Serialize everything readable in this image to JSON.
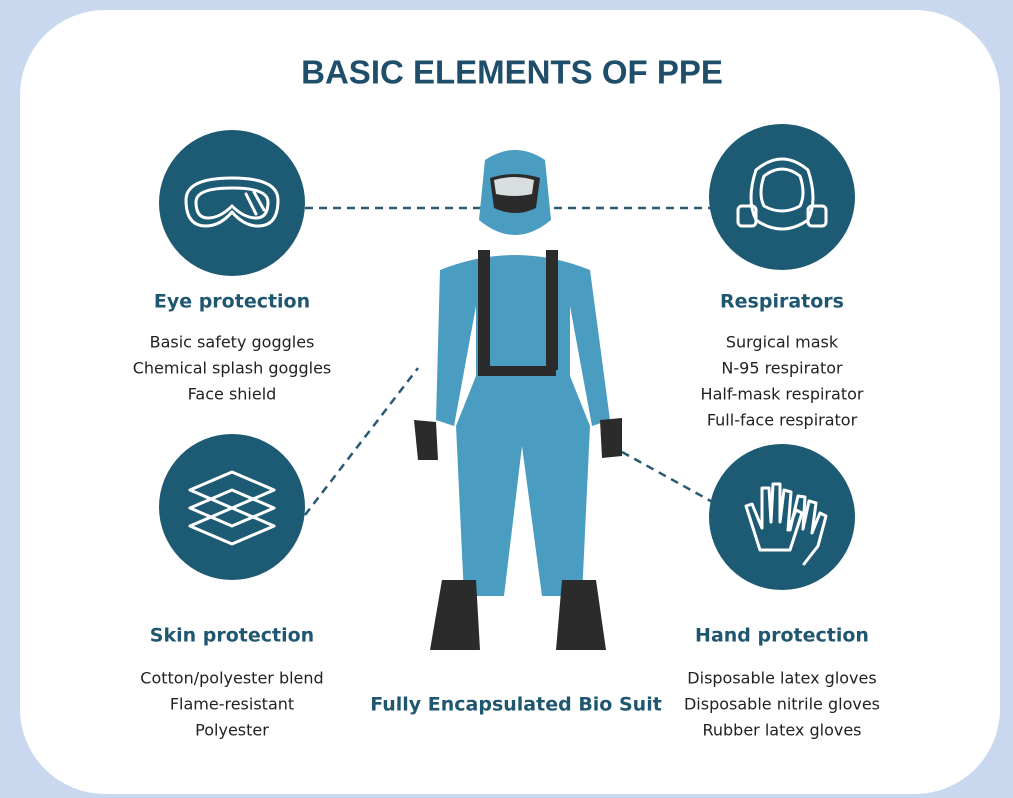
{
  "title": "BASIC ELEMENTS OF PPE",
  "sections": [
    {
      "title": "Eye protection",
      "items": [
        "Basic safety goggles",
        "Chemical splash goggles",
        "Face shield"
      ]
    },
    {
      "title": "Respirators",
      "items": [
        "Surgical mask",
        "N-95 respirator",
        "Half-mask respirator",
        "Full-face respirator"
      ]
    },
    {
      "title": "Skin protection",
      "items": [
        "Cotton/polyester blend",
        "Flame-resistant",
        "Polyester"
      ]
    },
    {
      "title": "Hand protection",
      "items": [
        "Disposable latex gloves",
        "Disposable nitrile gloves",
        "Rubber latex gloves"
      ]
    }
  ],
  "caption": "Fully Encapsulated Bio Suit"
}
